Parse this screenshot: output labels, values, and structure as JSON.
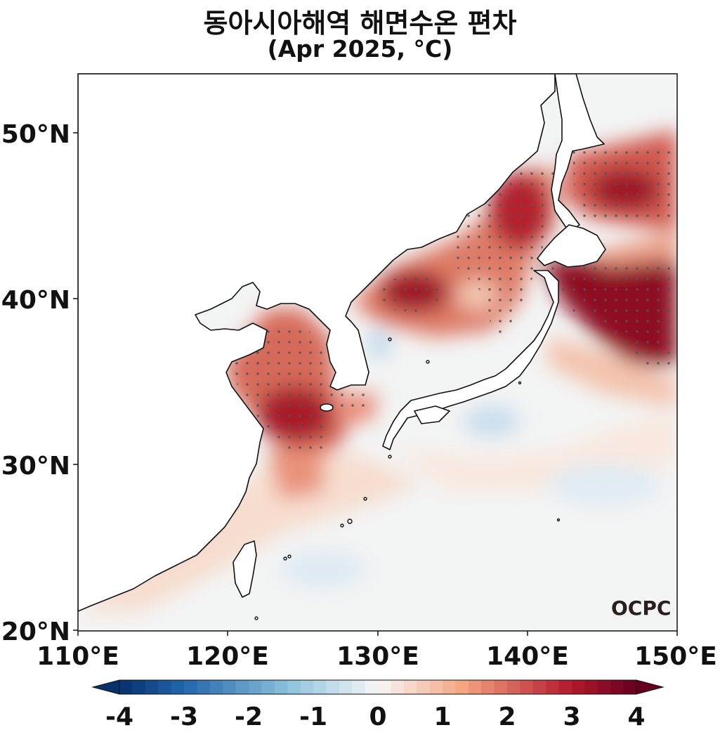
{
  "title": {
    "line1": "동아시아해역 해면수온 편차",
    "line2": "(Apr 2025, °C)"
  },
  "map": {
    "lat_ticks": [
      "50°N",
      "40°N",
      "30°N",
      "20°N"
    ],
    "lon_ticks": [
      "110°E",
      "120°E",
      "130°E",
      "140°E",
      "150°E"
    ],
    "logo_text": "OCPC"
  },
  "colorbar": {
    "range": [
      -4,
      4
    ],
    "tick_labels": [
      "-4",
      "-3",
      "-2",
      "-1",
      "0",
      "1",
      "2",
      "3",
      "4"
    ],
    "colors": {
      "cold_end": "#08306b",
      "cold": "#2166ac",
      "cool": "#92c5de",
      "neutral": "#f7f7f7",
      "warm": "#f4a582",
      "hot": "#b2182b",
      "hot_end": "#67001f"
    }
  }
}
